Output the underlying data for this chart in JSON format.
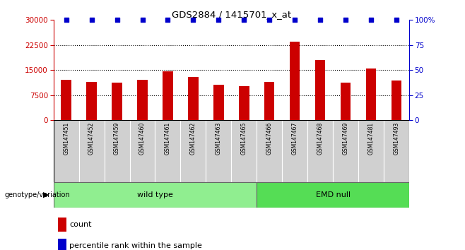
{
  "title": "GDS2884 / 1415701_x_at",
  "categories": [
    "GSM147451",
    "GSM147452",
    "GSM147459",
    "GSM147460",
    "GSM147461",
    "GSM147462",
    "GSM147463",
    "GSM147465",
    "GSM147466",
    "GSM147467",
    "GSM147468",
    "GSM147469",
    "GSM147481",
    "GSM147493"
  ],
  "bar_values": [
    12000,
    11500,
    11200,
    12000,
    14500,
    13000,
    10500,
    10200,
    11500,
    23500,
    18000,
    11200,
    15500,
    11800
  ],
  "percentile_values": [
    100,
    100,
    100,
    100,
    100,
    100,
    100,
    100,
    100,
    100,
    100,
    100,
    100,
    100
  ],
  "bar_color": "#cc0000",
  "percentile_color": "#0000cc",
  "left_ylim": [
    0,
    30000
  ],
  "right_ylim": [
    0,
    100
  ],
  "left_yticks": [
    0,
    7500,
    15000,
    22500,
    30000
  ],
  "right_yticks": [
    0,
    25,
    50,
    75,
    100
  ],
  "right_yticklabels": [
    "0",
    "25",
    "50",
    "75",
    "100%"
  ],
  "wt_count": 8,
  "emd_count": 6,
  "wild_type_label": "wild type",
  "emd_null_label": "EMD null",
  "genotype_label": "genotype/variation",
  "legend_count_label": "count",
  "legend_percentile_label": "percentile rank within the sample",
  "group_color_wt": "#90ee90",
  "group_color_emd": "#55dd55",
  "label_bg_color": "#d0d0d0",
  "grid_color": "#000000",
  "grid_linestyle": ":",
  "grid_linewidth": 0.8
}
